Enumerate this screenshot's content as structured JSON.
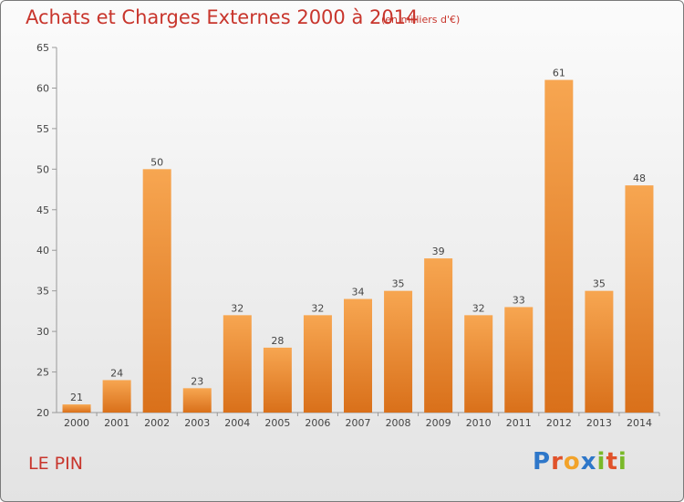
{
  "header": {
    "title": "Achats et Charges Externes 2000 à 2014",
    "subtitle": "(en milliers d'€)"
  },
  "footer": {
    "commune": "LE PIN",
    "logo_letters": [
      "P",
      "r",
      "o",
      "x",
      "i",
      "t",
      "i"
    ],
    "logo_colors": [
      "#2e77c9",
      "#e0522a",
      "#f2a32a",
      "#2e77c9",
      "#7ab929",
      "#e0522a",
      "#7ab929"
    ]
  },
  "chart_data": {
    "type": "bar",
    "title": "Achats et Charges Externes 2000 à 2014",
    "subtitle": "(en milliers d'€)",
    "categories": [
      "2000",
      "2001",
      "2002",
      "2003",
      "2004",
      "2005",
      "2006",
      "2007",
      "2008",
      "2009",
      "2010",
      "2011",
      "2012",
      "2013",
      "2014"
    ],
    "values": [
      21,
      24,
      50,
      23,
      32,
      28,
      32,
      34,
      35,
      39,
      32,
      33,
      61,
      35,
      48
    ],
    "ylim": [
      20,
      65
    ],
    "yticks": [
      20,
      25,
      30,
      35,
      40,
      45,
      50,
      55,
      60,
      65
    ],
    "grid": false,
    "colors": {
      "bar_light": "#f7a651",
      "bar_dark": "#d9701a",
      "axis": "#999999",
      "text": "#444444"
    }
  }
}
